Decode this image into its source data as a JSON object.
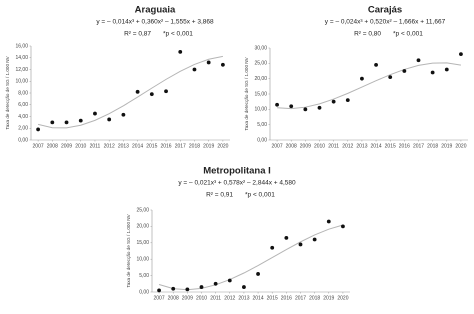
{
  "chart_data": [
    {
      "type": "scatter",
      "title": "Araguaia",
      "equation": "y = – 0,014x³ + 0,360x² – 1,555x + 3,868",
      "r2": "R² = 0,87",
      "p": "*p < 0,001",
      "ylabel": "Taxa de detecção de SG / 1.000 NV",
      "x": [
        2007,
        2008,
        2009,
        2010,
        2011,
        2012,
        2013,
        2014,
        2015,
        2016,
        2017,
        2018,
        2019,
        2020
      ],
      "values": [
        1.8,
        3.0,
        3.0,
        3.3,
        4.5,
        3.5,
        4.3,
        8.2,
        7.8,
        8.3,
        15.0,
        12.0,
        13.2,
        12.8
      ],
      "color": "#111111",
      "trend": {
        "color": "#b5b5b5",
        "values": [
          2.66,
          2.09,
          2.07,
          2.51,
          3.34,
          4.47,
          5.82,
          7.3,
          8.83,
          10.32,
          11.69,
          12.86,
          13.74,
          14.24
        ]
      },
      "xlim": [
        2006.5,
        2020.5
      ],
      "xticks": [
        2007,
        2008,
        2009,
        2010,
        2011,
        2012,
        2013,
        2014,
        2015,
        2016,
        2017,
        2018,
        2019,
        2020
      ],
      "ylim": [
        0,
        16
      ],
      "yticks": [
        {
          "value": 0,
          "label": "0,00"
        },
        {
          "value": 2,
          "label": "2,00"
        },
        {
          "value": 4,
          "label": "4,00"
        },
        {
          "value": 6,
          "label": "6,00"
        },
        {
          "value": 8,
          "label": "8,00"
        },
        {
          "value": 10,
          "label": "10,00"
        },
        {
          "value": 12,
          "label": "12,00"
        },
        {
          "value": 14,
          "label": "14,00"
        },
        {
          "value": 16,
          "label": "16,00"
        }
      ],
      "grid": false
    },
    {
      "type": "scatter",
      "title": "Carajás",
      "equation": "y = – 0,024x³ + 0,520x² – 1,666x + 11,667",
      "r2": "R² = 0,80",
      "p": "*p < 0,001",
      "ylabel": "Taxa de detecção de SG / 1.000 NV",
      "x": [
        2007,
        2008,
        2009,
        2010,
        2011,
        2012,
        2013,
        2014,
        2015,
        2016,
        2017,
        2018,
        2019,
        2020
      ],
      "values": [
        11.5,
        11.0,
        10.0,
        10.5,
        12.5,
        13.0,
        20.0,
        24.5,
        20.5,
        22.5,
        26.0,
        22.0,
        23.0,
        28.0
      ],
      "color": "#111111",
      "trend": {
        "color": "#b5b5b5",
        "values": [
          10.5,
          10.22,
          10.7,
          11.79,
          13.34,
          15.21,
          17.25,
          19.33,
          21.3,
          23.01,
          24.32,
          25.08,
          25.16,
          24.41
        ]
      },
      "xlim": [
        2006.5,
        2020.5
      ],
      "xticks": [
        2007,
        2008,
        2009,
        2010,
        2011,
        2012,
        2013,
        2014,
        2015,
        2016,
        2017,
        2018,
        2019,
        2020
      ],
      "ylim": [
        0,
        30
      ],
      "yticks": [
        {
          "value": 0,
          "label": "0,00"
        },
        {
          "value": 5,
          "label": "5,00"
        },
        {
          "value": 10,
          "label": "10,00"
        },
        {
          "value": 15,
          "label": "15,00"
        },
        {
          "value": 20,
          "label": "20,00"
        },
        {
          "value": 25,
          "label": "25,00"
        },
        {
          "value": 30,
          "label": "30,00"
        }
      ],
      "grid": false
    },
    {
      "type": "scatter",
      "title": "Metropolitana I",
      "equation": "y = – 0,021x³ + 0,578x² – 2,844x + 4,580",
      "r2": "R² = 0,91",
      "p": "*p < 0,001",
      "ylabel": "Taxa de detecção de SG / 1.000 NV",
      "x": [
        2007,
        2008,
        2009,
        2010,
        2011,
        2012,
        2013,
        2014,
        2015,
        2016,
        2017,
        2018,
        2019,
        2020
      ],
      "values": [
        0.5,
        1.0,
        0.8,
        1.5,
        2.5,
        3.5,
        1.5,
        5.5,
        13.5,
        16.5,
        14.5,
        16.0,
        21.5,
        20.0
      ],
      "color": "#111111",
      "trend": {
        "color": "#b5b5b5",
        "values": [
          2.29,
          1.04,
          0.68,
          1.11,
          2.19,
          3.79,
          5.79,
          8.07,
          10.49,
          12.94,
          15.28,
          17.4,
          19.15,
          20.43
        ]
      },
      "xlim": [
        2006.5,
        2020.5
      ],
      "xticks": [
        2007,
        2008,
        2009,
        2010,
        2011,
        2012,
        2013,
        2014,
        2015,
        2016,
        2017,
        2018,
        2019,
        2020
      ],
      "ylim": [
        0,
        25
      ],
      "yticks": [
        {
          "value": 0,
          "label": "0,00"
        },
        {
          "value": 5,
          "label": "5,00"
        },
        {
          "value": 10,
          "label": "10,00"
        },
        {
          "value": 15,
          "label": "15,00"
        },
        {
          "value": 20,
          "label": "20,00"
        },
        {
          "value": 25,
          "label": "25,00"
        }
      ],
      "grid": false
    }
  ]
}
